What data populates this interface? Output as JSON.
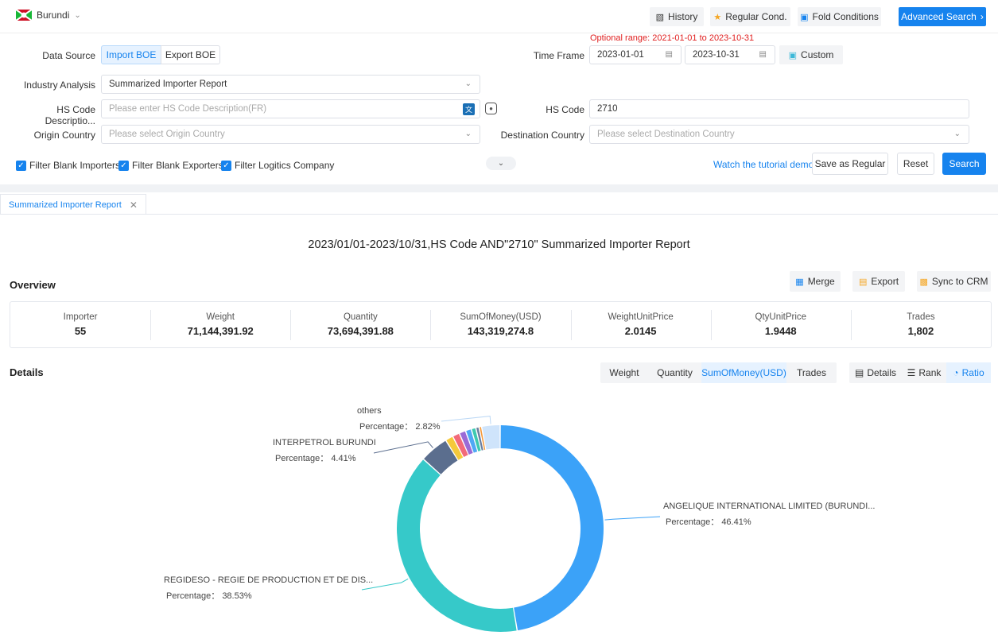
{
  "topbar": {
    "country": "Burundi",
    "history": "History",
    "regular_cond": "Regular Cond.",
    "fold_conditions": "Fold Conditions",
    "advanced_search": "Advanced Search"
  },
  "filters": {
    "optional_range": "Optional range:  2021-01-01 to 2023-10-31",
    "data_source_label": "Data Source",
    "import_boe": "Import BOE",
    "export_boe": "Export BOE",
    "time_frame_label": "Time Frame",
    "date_from": "2023-01-01",
    "date_to": "2023-10-31",
    "custom": "Custom",
    "industry_label": "Industry Analysis",
    "industry_value": "Summarized Importer Report",
    "hs_desc_label": "HS Code Descriptio...",
    "hs_desc_placeholder": "Please enter HS Code Description(FR)",
    "hs_code_label": "HS Code",
    "hs_code_value": "2710",
    "origin_label": "Origin Country",
    "origin_placeholder": "Please select Origin Country",
    "dest_label": "Destination Country",
    "dest_placeholder": "Please select Destination Country",
    "filter_blank_importers": "Filter Blank Importers",
    "filter_blank_exporters": "Filter Blank Exporters",
    "filter_logistics": "Filter Logitics Company",
    "tutorial": "Watch the tutorial demo",
    "save_regular": "Save as Regular",
    "reset": "Reset",
    "search": "Search"
  },
  "tab": {
    "label": "Summarized Importer Report"
  },
  "report": {
    "title": "2023/01/01-2023/10/31,HS Code AND\"2710\" Summarized Importer Report",
    "overview": "Overview",
    "merge": "Merge",
    "export": "Export",
    "sync_crm": "Sync to CRM",
    "stats": [
      {
        "key": "Importer",
        "value": "55"
      },
      {
        "key": "Weight",
        "value": "71,144,391.92"
      },
      {
        "key": "Quantity",
        "value": "73,694,391.88"
      },
      {
        "key": "SumOfMoney(USD)",
        "value": "143,319,274.8"
      },
      {
        "key": "WeightUnitPrice",
        "value": "2.0145"
      },
      {
        "key": "QtyUnitPrice",
        "value": "1.9448"
      },
      {
        "key": "Trades",
        "value": "1,802"
      }
    ],
    "details": "Details",
    "metrics": [
      "Weight",
      "Quantity",
      "SumOfMoney(USD)",
      "Trades"
    ],
    "views": [
      "Details",
      "Rank",
      "Ratio"
    ]
  },
  "chart_data": {
    "type": "pie",
    "title": "",
    "donut": true,
    "series": [
      {
        "label": "ANGELIQUE INTERNATIONAL LIMITED (BURUNDI...",
        "percent": 46.41,
        "color": "#3ba2f8",
        "label_text": "Percentage：  46.41%"
      },
      {
        "label": "REGIDESO - REGIE DE PRODUCTION ET DE DIS...",
        "percent": 38.53,
        "color": "#36c9c9",
        "label_text": "Percentage：  38.53%"
      },
      {
        "label": "INTERPETROL BURUNDI",
        "percent": 4.41,
        "color": "#5b6e8e",
        "label_text": "Percentage：  4.41%"
      },
      {
        "label": "",
        "percent": 1.2,
        "color": "#f5c93b",
        "label_text": ""
      },
      {
        "label": "",
        "percent": 1.1,
        "color": "#f26a7a",
        "label_text": ""
      },
      {
        "label": "",
        "percent": 1.0,
        "color": "#9a6ad6",
        "label_text": ""
      },
      {
        "label": "",
        "percent": 0.9,
        "color": "#4fa8f5",
        "label_text": ""
      },
      {
        "label": "",
        "percent": 0.7,
        "color": "#3dc9b0",
        "label_text": ""
      },
      {
        "label": "",
        "percent": 0.5,
        "color": "#6a7ea0",
        "label_text": ""
      },
      {
        "label": "",
        "percent": 0.4,
        "color": "#f59a3b",
        "label_text": ""
      },
      {
        "label": "others",
        "percent": 2.82,
        "color": "#cfe4fb",
        "label_text": "Percentage：  2.82%"
      }
    ]
  }
}
